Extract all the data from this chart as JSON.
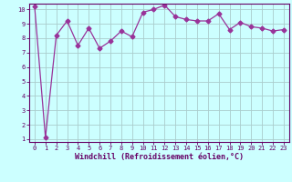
{
  "x": [
    0,
    1,
    2,
    3,
    4,
    5,
    6,
    7,
    8,
    9,
    10,
    11,
    12,
    13,
    14,
    15,
    16,
    17,
    18,
    19,
    20,
    21,
    22,
    23
  ],
  "y": [
    10.2,
    1.1,
    8.2,
    9.2,
    7.5,
    8.7,
    7.3,
    7.8,
    8.5,
    8.1,
    9.8,
    10.0,
    10.3,
    9.5,
    9.3,
    9.2,
    9.2,
    9.7,
    8.6,
    9.1,
    8.8,
    8.7,
    8.5,
    8.6
  ],
  "xlim_min": -0.5,
  "xlim_max": 23.5,
  "ylim_min": 0.8,
  "ylim_max": 10.4,
  "xlabel": "Windchill (Refroidissement éolien,°C)",
  "yticks": [
    1,
    2,
    3,
    4,
    5,
    6,
    7,
    8,
    9,
    10
  ],
  "xticks": [
    0,
    1,
    2,
    3,
    4,
    5,
    6,
    7,
    8,
    9,
    10,
    11,
    12,
    13,
    14,
    15,
    16,
    17,
    18,
    19,
    20,
    21,
    22,
    23
  ],
  "line_color": "#993399",
  "marker": "D",
  "marker_size": 2.5,
  "bg_color": "#ccffff",
  "grid_color": "#aacccc",
  "axis_color": "#660066",
  "label_color": "#660066",
  "tick_fontsize": 5.0,
  "xlabel_fontsize": 6.0,
  "linewidth": 0.9
}
